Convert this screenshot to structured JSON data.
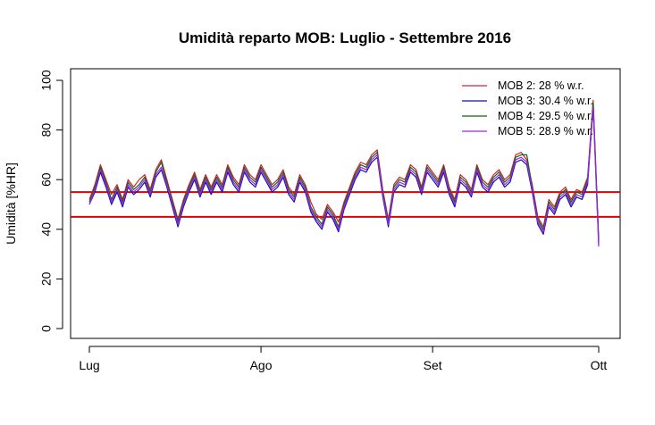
{
  "chart_data": {
    "type": "line",
    "title": "Umidità reparto MOB: Luglio - Settembre 2016",
    "xlabel": "",
    "ylabel": "Umidità [%HR]",
    "x_ticks": [
      {
        "label": "Lug",
        "day": 0
      },
      {
        "label": "Ago",
        "day": 31
      },
      {
        "label": "Set",
        "day": 62
      },
      {
        "label": "Ott",
        "day": 92
      }
    ],
    "xlim_days": [
      0,
      92
    ],
    "ylim": [
      0,
      100
    ],
    "y_ticks": [
      0,
      20,
      40,
      60,
      80,
      100
    ],
    "grid": false,
    "legend_position": "top-right",
    "reference_lines": [
      {
        "y": 45,
        "color": "#e00000"
      },
      {
        "y": 55,
        "color": "#e00000"
      }
    ],
    "x_days": [
      0,
      1,
      2,
      3,
      4,
      5,
      6,
      7,
      8,
      9,
      10,
      11,
      12,
      13,
      14,
      15,
      16,
      17,
      18,
      19,
      20,
      21,
      22,
      23,
      24,
      25,
      26,
      27,
      28,
      29,
      30,
      31,
      32,
      33,
      34,
      35,
      36,
      37,
      38,
      39,
      40,
      41,
      42,
      43,
      44,
      45,
      46,
      47,
      48,
      49,
      50,
      51,
      52,
      53,
      54,
      55,
      56,
      57,
      58,
      59,
      60,
      61,
      62,
      63,
      64,
      65,
      66,
      67,
      68,
      69,
      70,
      71,
      72,
      73,
      74,
      75,
      76,
      77,
      78,
      79,
      80,
      81,
      82,
      83,
      84,
      85,
      86,
      87,
      88,
      89,
      90,
      91,
      92
    ],
    "series": [
      {
        "name": "MOB 2:  28 % w.r.",
        "color": "#d0202e",
        "values": [
          52,
          58,
          66,
          60,
          54,
          58,
          52,
          60,
          57,
          60,
          62,
          56,
          64,
          68,
          60,
          52,
          44,
          52,
          58,
          63,
          56,
          62,
          57,
          62,
          58,
          66,
          61,
          58,
          66,
          62,
          60,
          66,
          62,
          58,
          60,
          64,
          57,
          54,
          62,
          58,
          51,
          46,
          44,
          50,
          47,
          43,
          51,
          57,
          63,
          67,
          66,
          70,
          72,
          56,
          44,
          58,
          61,
          60,
          66,
          64,
          57,
          66,
          63,
          60,
          66,
          57,
          52,
          62,
          60,
          56,
          66,
          60,
          58,
          62,
          64,
          60,
          62,
          70,
          71,
          68,
          58,
          45,
          41,
          52,
          49,
          55,
          57,
          52,
          56,
          55,
          61,
          92,
          36
        ]
      },
      {
        "name": "MOB 3:  30.4 % w.r.",
        "color": "#1010b0",
        "values": [
          50,
          55,
          63,
          57,
          50,
          55,
          49,
          57,
          54,
          56,
          59,
          53,
          61,
          64,
          57,
          49,
          41,
          49,
          55,
          60,
          53,
          59,
          54,
          59,
          55,
          63,
          58,
          55,
          63,
          59,
          57,
          63,
          59,
          55,
          57,
          61,
          54,
          51,
          59,
          55,
          47,
          43,
          40,
          47,
          44,
          39,
          48,
          54,
          60,
          64,
          63,
          67,
          69,
          53,
          41,
          55,
          58,
          57,
          63,
          61,
          54,
          63,
          60,
          57,
          63,
          54,
          49,
          59,
          57,
          53,
          63,
          57,
          55,
          59,
          61,
          57,
          59,
          67,
          68,
          66,
          55,
          42,
          38,
          49,
          46,
          52,
          54,
          49,
          53,
          52,
          58,
          90,
          34
        ]
      },
      {
        "name": "MOB 4:  29.5 % w.r.",
        "color": "#0a6a0a",
        "values": [
          51,
          57,
          65,
          59,
          52,
          57,
          51,
          59,
          56,
          58,
          61,
          55,
          63,
          67,
          59,
          51,
          43,
          51,
          57,
          62,
          55,
          61,
          56,
          61,
          57,
          65,
          60,
          57,
          65,
          61,
          59,
          65,
          61,
          57,
          59,
          63,
          56,
          53,
          61,
          57,
          49,
          45,
          42,
          49,
          46,
          41,
          50,
          56,
          62,
          66,
          65,
          69,
          71,
          55,
          43,
          57,
          60,
          59,
          65,
          63,
          56,
          65,
          62,
          59,
          65,
          56,
          51,
          61,
          59,
          55,
          65,
          59,
          57,
          61,
          63,
          59,
          61,
          69,
          70,
          70,
          57,
          44,
          40,
          51,
          48,
          54,
          56,
          51,
          55,
          54,
          60,
          91,
          35
        ]
      },
      {
        "name": "MOB 5:  28.9 % w.r.",
        "color": "#a020f0",
        "values": [
          50,
          56,
          64,
          58,
          51,
          56,
          50,
          58,
          55,
          57,
          60,
          54,
          62,
          65,
          58,
          50,
          42,
          50,
          56,
          61,
          54,
          60,
          55,
          60,
          56,
          64,
          59,
          56,
          64,
          60,
          58,
          64,
          60,
          56,
          58,
          62,
          55,
          52,
          60,
          56,
          48,
          44,
          41,
          48,
          45,
          40,
          49,
          55,
          61,
          65,
          64,
          68,
          70,
          54,
          42,
          56,
          59,
          58,
          64,
          62,
          55,
          64,
          61,
          58,
          64,
          55,
          50,
          60,
          58,
          54,
          64,
          58,
          56,
          60,
          62,
          58,
          60,
          68,
          69,
          67,
          56,
          43,
          39,
          50,
          47,
          53,
          55,
          50,
          54,
          53,
          59,
          89,
          33
        ]
      }
    ]
  }
}
